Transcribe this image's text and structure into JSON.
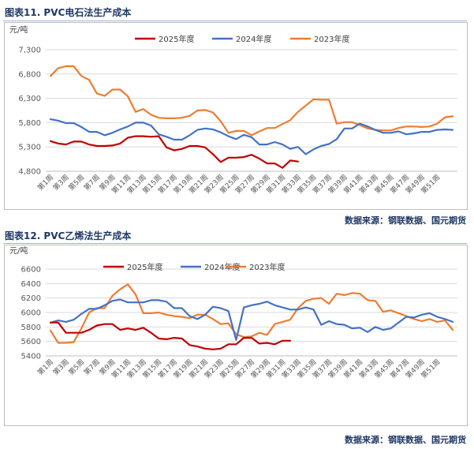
{
  "figures": [
    {
      "title": "图表11.  PVC电石法生产成本",
      "source": "数据来源：钢联数据、国元期货"
    },
    {
      "title": "图表12.  PVC乙烯法生产成本",
      "source": "数据来源：钢联数据、国元期货"
    }
  ],
  "chart_data": [
    {
      "type": "line",
      "title": "",
      "ylabel": "元/吨",
      "xlabel": "",
      "ylim": [
        4800,
        7300
      ],
      "yticks": [
        4800,
        5300,
        5800,
        6300,
        6800,
        7300
      ],
      "ytick_labels": [
        "4,800",
        "5,300",
        "5,800",
        "6,300",
        "6,800",
        "7,300"
      ],
      "x_labels": [
        "第1周",
        "第3周",
        "第5周",
        "第7周",
        "第9周",
        "第11周",
        "第13周",
        "第15周",
        "第17周",
        "第19周",
        "第21周",
        "第23周",
        "第25周",
        "第27周",
        "第29周",
        "第31周",
        "第33周",
        "第35周",
        "第37周",
        "第39周",
        "第41周",
        "第43周",
        "第45周",
        "第47周",
        "第49周",
        "第51周"
      ],
      "legend_position": "top",
      "grid": true,
      "series": [
        {
          "name": "2025年度",
          "color": "#c00000",
          "values": [
            5420,
            5370,
            5350,
            5410,
            5410,
            5350,
            5320,
            5320,
            5330,
            5370,
            5490,
            5520,
            5520,
            5510,
            5520,
            5290,
            5230,
            5260,
            5320,
            5320,
            5290,
            5150,
            4990,
            5080,
            5080,
            5090,
            5140,
            5060,
            4960,
            4960,
            4870,
            5020,
            5000
          ]
        },
        {
          "name": "2024年度",
          "color": "#4472c4",
          "values": [
            5870,
            5840,
            5790,
            5790,
            5710,
            5610,
            5610,
            5540,
            5590,
            5660,
            5720,
            5800,
            5800,
            5740,
            5560,
            5510,
            5450,
            5450,
            5540,
            5650,
            5680,
            5660,
            5600,
            5520,
            5460,
            5550,
            5500,
            5350,
            5350,
            5400,
            5350,
            5260,
            5300,
            5150,
            5250,
            5320,
            5360,
            5460,
            5680,
            5680,
            5780,
            5720,
            5650,
            5590,
            5590,
            5620,
            5560,
            5580,
            5610,
            5610,
            5650,
            5660,
            5650
          ]
        },
        {
          "name": "2023年度",
          "color": "#ed7d31",
          "values": [
            6760,
            6920,
            6960,
            6960,
            6760,
            6680,
            6400,
            6350,
            6480,
            6480,
            6340,
            6020,
            6080,
            5960,
            5900,
            5890,
            5890,
            5900,
            5940,
            6050,
            6060,
            6010,
            5830,
            5590,
            5630,
            5630,
            5540,
            5620,
            5690,
            5690,
            5770,
            5850,
            6020,
            6150,
            6280,
            6270,
            6270,
            5780,
            5810,
            5810,
            5750,
            5680,
            5650,
            5640,
            5640,
            5690,
            5720,
            5720,
            5710,
            5720,
            5780,
            5910,
            5930
          ]
        }
      ]
    },
    {
      "type": "line",
      "title": "",
      "ylabel": "元/吨",
      "xlabel": "",
      "ylim": [
        5400,
        6600
      ],
      "yticks": [
        5400,
        5600,
        5800,
        6000,
        6200,
        6400,
        6600
      ],
      "ytick_labels": [
        "5400",
        "5600",
        "5800",
        "6000",
        "6200",
        "6400",
        "6600"
      ],
      "x_labels": [
        "第1周",
        "第3周",
        "第5周",
        "第7周",
        "第9周",
        "第11周",
        "第13周",
        "第15周",
        "第17周",
        "第19周",
        "第21周",
        "第23周",
        "第25周",
        "第27周",
        "第29周",
        "第31周",
        "第33周",
        "第35周",
        "第37周",
        "第39周",
        "第41周",
        "第43周",
        "第45周",
        "第47周",
        "第49周",
        "第51周"
      ],
      "legend_position": "top",
      "grid": true,
      "series": [
        {
          "name": "2025年度",
          "color": "#c00000",
          "values": [
            5860,
            5860,
            5720,
            5720,
            5720,
            5760,
            5820,
            5840,
            5840,
            5760,
            5780,
            5760,
            5790,
            5720,
            5640,
            5630,
            5650,
            5640,
            5550,
            5530,
            5500,
            5490,
            5500,
            5560,
            5560,
            5650,
            5650,
            5570,
            5580,
            5560,
            5610,
            5610
          ]
        },
        {
          "name": "2024年度",
          "color": "#4472c4",
          "values": [
            5860,
            5890,
            5870,
            5900,
            5980,
            6050,
            6050,
            6100,
            6160,
            6180,
            6140,
            6140,
            6140,
            6170,
            6170,
            6150,
            6060,
            6060,
            5950,
            5910,
            5970,
            6080,
            6060,
            6020,
            5620,
            6070,
            6100,
            6120,
            6150,
            6100,
            6070,
            6040,
            6040,
            6070,
            6040,
            5830,
            5880,
            5840,
            5830,
            5780,
            5790,
            5730,
            5800,
            5760,
            5780,
            5860,
            5940,
            5930,
            5970,
            5990,
            5940,
            5910,
            5870
          ]
        },
        {
          "name": "2023年度",
          "color": "#ed7d31",
          "values": [
            5750,
            5580,
            5580,
            5590,
            5780,
            6000,
            6060,
            6060,
            6230,
            6320,
            6390,
            6250,
            5990,
            5990,
            6000,
            5970,
            5950,
            5940,
            5920,
            5970,
            5970,
            5910,
            5840,
            5850,
            5700,
            5660,
            5670,
            5720,
            5690,
            5840,
            5870,
            5900,
            6060,
            6160,
            6190,
            6200,
            6120,
            6260,
            6240,
            6270,
            6260,
            6170,
            6160,
            6010,
            6030,
            5990,
            5950,
            5910,
            5880,
            5910,
            5870,
            5890,
            5760
          ]
        }
      ]
    }
  ]
}
